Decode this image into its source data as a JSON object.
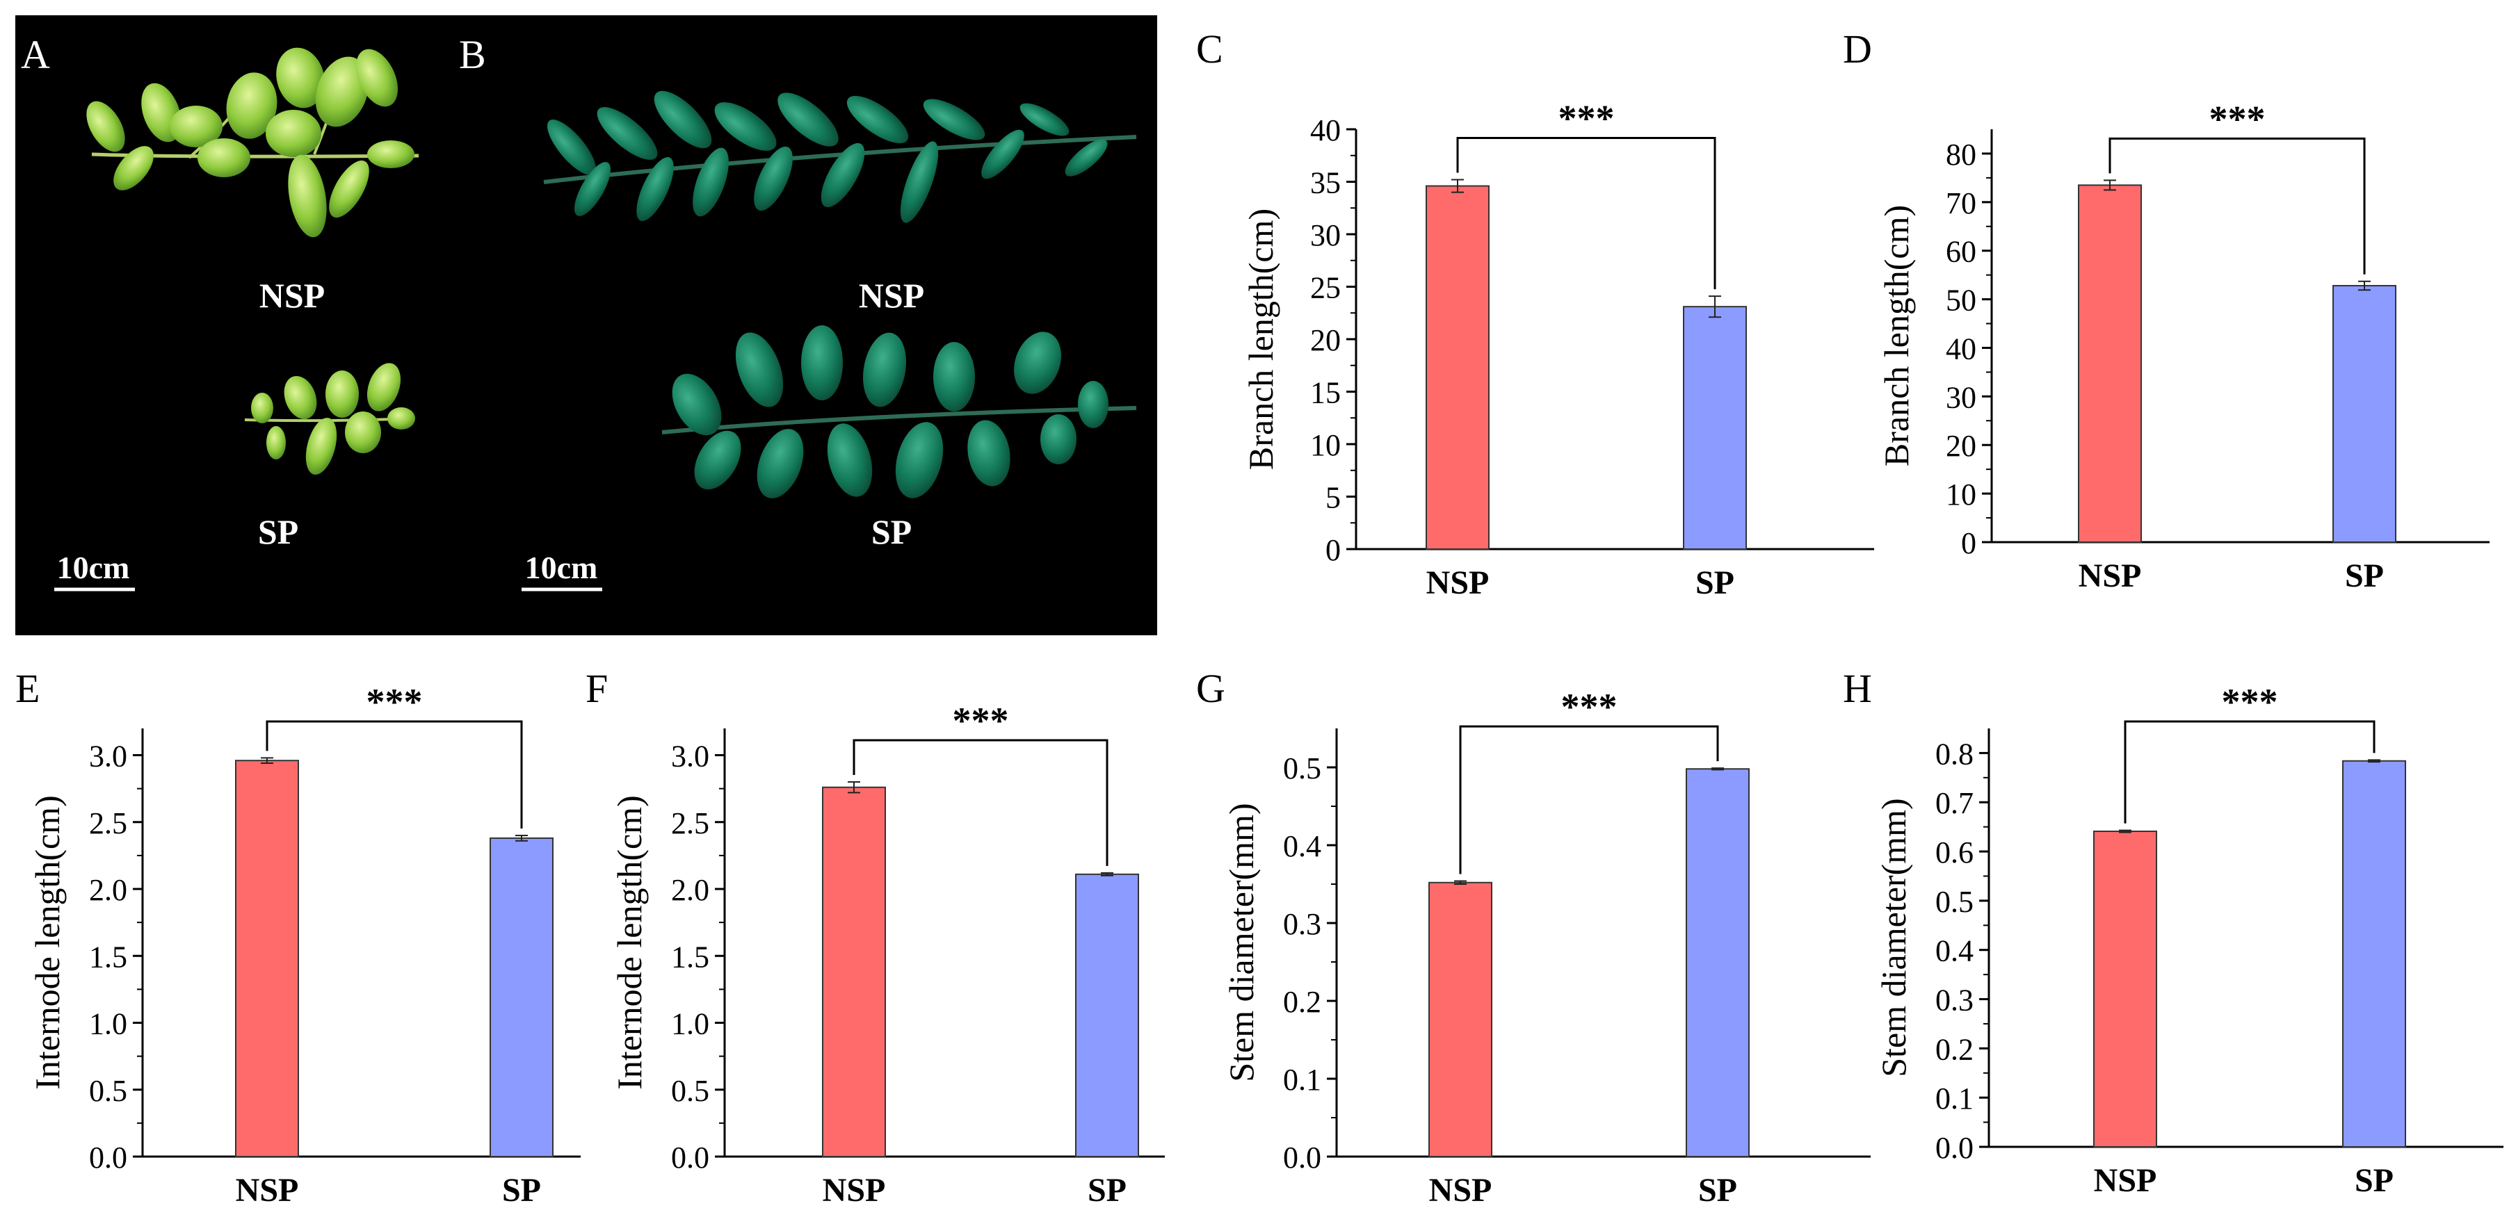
{
  "figure": {
    "panel_a": {
      "letter": "A",
      "label_top": "NSP",
      "label_bottom": "SP",
      "scale": "10cm"
    },
    "panel_b": {
      "letter": "B",
      "label_top": "NSP",
      "label_bottom": "SP",
      "scale": "10cm"
    }
  },
  "colors": {
    "nsp": "#ff6b6b",
    "sp": "#8c9bff",
    "axis": "#000000",
    "photo_background": "#000000"
  },
  "chart_data": [
    {
      "panel": "C",
      "type": "bar",
      "ylabel": "Branch length(cm)",
      "xlabel": "",
      "categories": [
        "NSP",
        "SP"
      ],
      "values": [
        34.6,
        23.1
      ],
      "errors": [
        0.6,
        1.0
      ],
      "ylim": [
        0,
        40
      ],
      "yticks": [
        0,
        5,
        10,
        15,
        20,
        25,
        30,
        35,
        40
      ],
      "ytick_labels": [
        "0",
        "5",
        "10",
        "15",
        "20",
        "25",
        "30",
        "35",
        "40"
      ],
      "significance": "***"
    },
    {
      "panel": "D",
      "type": "bar",
      "ylabel": "Branch length(cm)",
      "xlabel": "",
      "categories": [
        "NSP",
        "SP"
      ],
      "values": [
        73.5,
        52.8
      ],
      "errors": [
        1.0,
        0.9
      ],
      "ylim": [
        0,
        85
      ],
      "yticks": [
        0,
        10,
        20,
        30,
        40,
        50,
        60,
        70,
        80
      ],
      "ytick_labels": [
        "0",
        "10",
        "20",
        "30",
        "40",
        "50",
        "60",
        "70",
        "80"
      ],
      "significance": "***"
    },
    {
      "panel": "E",
      "type": "bar",
      "ylabel": "Internode length(cm)",
      "xlabel": "",
      "categories": [
        "NSP",
        "SP"
      ],
      "values": [
        2.96,
        2.38
      ],
      "errors": [
        0.02,
        0.02
      ],
      "ylim": [
        0,
        3.2
      ],
      "yticks": [
        0,
        0.5,
        1.0,
        1.5,
        2.0,
        2.5,
        3.0
      ],
      "ytick_labels": [
        "0.0",
        "0.5",
        "1.0",
        "1.5",
        "2.0",
        "2.5",
        "3.0"
      ],
      "significance": "***"
    },
    {
      "panel": "F",
      "type": "bar",
      "ylabel": "Internode length(cm)",
      "xlabel": "",
      "categories": [
        "NSP",
        "SP"
      ],
      "values": [
        2.76,
        2.11
      ],
      "errors": [
        0.04,
        0.01
      ],
      "ylim": [
        0,
        3.2
      ],
      "yticks": [
        0,
        0.5,
        1.0,
        1.5,
        2.0,
        2.5,
        3.0
      ],
      "ytick_labels": [
        "0.0",
        "0.5",
        "1.0",
        "1.5",
        "2.0",
        "2.5",
        "3.0"
      ],
      "significance": "***"
    },
    {
      "panel": "G",
      "type": "bar",
      "ylabel": "Stem diameter(mm)",
      "xlabel": "",
      "categories": [
        "NSP",
        "SP"
      ],
      "values": [
        0.352,
        0.498
      ],
      "errors": [
        0.002,
        0.001
      ],
      "ylim": [
        0,
        0.55
      ],
      "yticks": [
        0,
        0.1,
        0.2,
        0.3,
        0.4,
        0.5
      ],
      "ytick_labels": [
        "0.0",
        "0.1",
        "0.2",
        "0.3",
        "0.4",
        "0.5"
      ],
      "significance": "***"
    },
    {
      "panel": "H",
      "type": "bar",
      "ylabel": "Stem diameter(mm)",
      "xlabel": "",
      "categories": [
        "NSP",
        "SP"
      ],
      "values": [
        0.641,
        0.784
      ],
      "errors": [
        0.002,
        0.002
      ],
      "ylim": [
        0,
        0.85
      ],
      "yticks": [
        0,
        0.1,
        0.2,
        0.3,
        0.4,
        0.5,
        0.6,
        0.7,
        0.8
      ],
      "ytick_labels": [
        "0.0",
        "0.1",
        "0.2",
        "0.3",
        "0.4",
        "0.5",
        "0.6",
        "0.7",
        "0.8"
      ],
      "significance": "***"
    }
  ]
}
